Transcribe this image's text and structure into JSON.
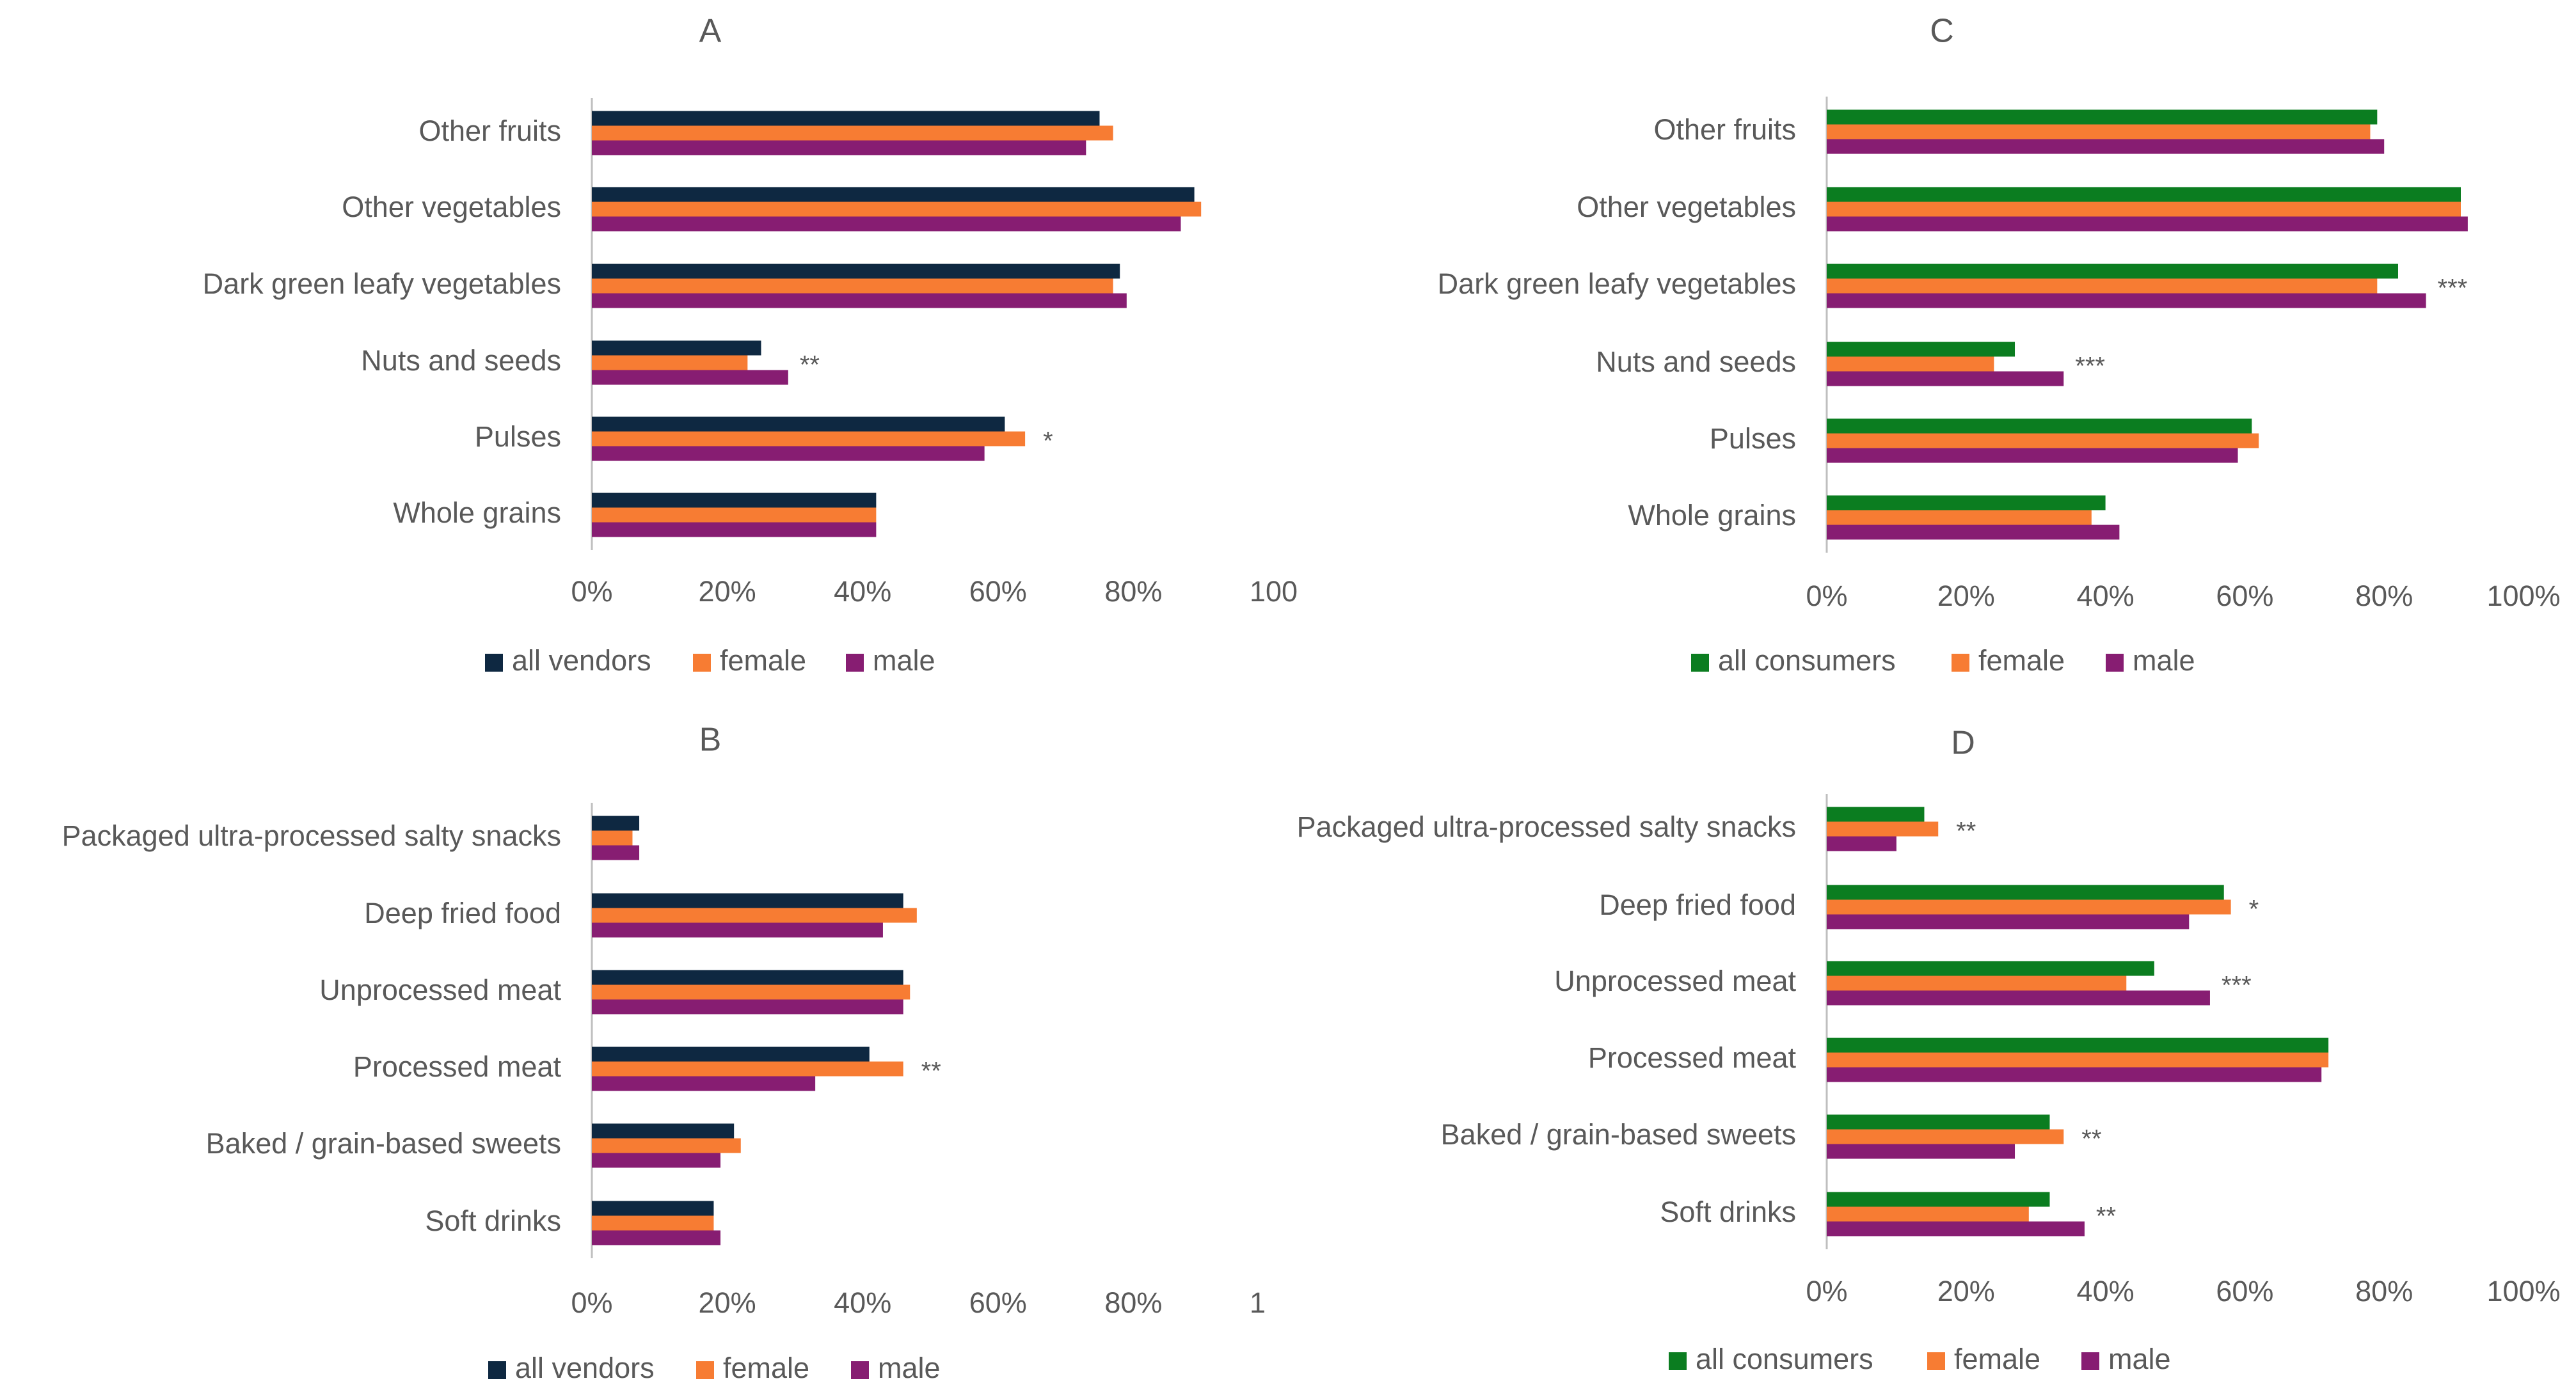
{
  "colors": {
    "all_vendors": "#0e2841",
    "all_consumers": "#0b7d20",
    "female": "#f77c33",
    "male": "#871d72",
    "axis": "#bfbfbf",
    "text": "#595959"
  },
  "chart_data": [
    {
      "panel": "A",
      "type": "bar",
      "orientation": "horizontal",
      "title": "A",
      "categories": [
        "Other fruits",
        "Other vegetables",
        "Dark green leafy vegetables",
        "Nuts and seeds",
        "Pulses",
        "Whole grains"
      ],
      "series": [
        {
          "name": "all vendors",
          "color_key": "all_vendors",
          "values": [
            75,
            89,
            78,
            25,
            61,
            42
          ]
        },
        {
          "name": "female",
          "color_key": "female",
          "values": [
            77,
            90,
            77,
            23,
            64,
            42
          ]
        },
        {
          "name": "male",
          "color_key": "male",
          "values": [
            73,
            87,
            79,
            29,
            58,
            42
          ]
        }
      ],
      "significance": [
        "",
        "",
        "",
        "**",
        "*",
        ""
      ],
      "xlim": [
        0,
        100
      ],
      "tick_labels": [
        "0%",
        "20%",
        "40%",
        "60%",
        "80%",
        "100"
      ],
      "xlabel": "",
      "ylabel": "",
      "legend": "bottom"
    },
    {
      "panel": "B",
      "type": "bar",
      "orientation": "horizontal",
      "title": "B",
      "categories": [
        "Packaged ultra-processed salty snacks",
        "Deep fried food",
        "Unprocessed meat",
        "Processed meat",
        "Baked / grain-based sweets",
        "Soft drinks"
      ],
      "series": [
        {
          "name": "all vendors",
          "color_key": "all_vendors",
          "values": [
            7,
            46,
            46,
            41,
            21,
            18
          ]
        },
        {
          "name": "female",
          "color_key": "female",
          "values": [
            6,
            48,
            47,
            46,
            22,
            18
          ]
        },
        {
          "name": "male",
          "color_key": "male",
          "values": [
            7,
            43,
            46,
            33,
            19,
            19
          ]
        }
      ],
      "significance": [
        "",
        "",
        "",
        "**",
        "",
        ""
      ],
      "xlim": [
        0,
        100
      ],
      "tick_labels": [
        "0%",
        "20%",
        "40%",
        "60%",
        "80%",
        "1"
      ],
      "xlabel": "",
      "ylabel": "",
      "legend": "bottom"
    },
    {
      "panel": "C",
      "type": "bar",
      "orientation": "horizontal",
      "title": "C",
      "categories": [
        "Other fruits",
        "Other vegetables",
        "Dark green leafy vegetables",
        "Nuts and seeds",
        "Pulses",
        "Whole grains"
      ],
      "series": [
        {
          "name": "all consumers",
          "color_key": "all_consumers",
          "values": [
            79,
            91,
            82,
            27,
            61,
            40
          ]
        },
        {
          "name": "female",
          "color_key": "female",
          "values": [
            78,
            91,
            79,
            24,
            62,
            38
          ]
        },
        {
          "name": "male",
          "color_key": "male",
          "values": [
            80,
            92,
            86,
            34,
            59,
            42
          ]
        }
      ],
      "significance": [
        "",
        "",
        "***",
        "***",
        "",
        ""
      ],
      "xlim": [
        0,
        100
      ],
      "tick_labels": [
        "0%",
        "20%",
        "40%",
        "60%",
        "80%",
        "100%"
      ],
      "xlabel": "",
      "ylabel": "",
      "legend": "bottom"
    },
    {
      "panel": "D",
      "type": "bar",
      "orientation": "horizontal",
      "title": "D",
      "categories": [
        "Packaged ultra-processed salty snacks",
        "Deep fried food",
        "Unprocessed meat",
        "Processed meat",
        "Baked / grain-based sweets",
        "Soft drinks"
      ],
      "series": [
        {
          "name": "all consumers",
          "color_key": "all_consumers",
          "values": [
            14,
            57,
            47,
            72,
            32,
            32
          ]
        },
        {
          "name": "female",
          "color_key": "female",
          "values": [
            16,
            58,
            43,
            72,
            34,
            29
          ]
        },
        {
          "name": "male",
          "color_key": "male",
          "values": [
            10,
            52,
            55,
            71,
            27,
            37
          ]
        }
      ],
      "significance": [
        "**",
        "*",
        "***",
        "",
        "**",
        "**"
      ],
      "xlim": [
        0,
        100
      ],
      "tick_labels": [
        "0%",
        "20%",
        "40%",
        "60%",
        "80%",
        "100%"
      ],
      "xlabel": "",
      "ylabel": "",
      "legend": "bottom"
    }
  ]
}
